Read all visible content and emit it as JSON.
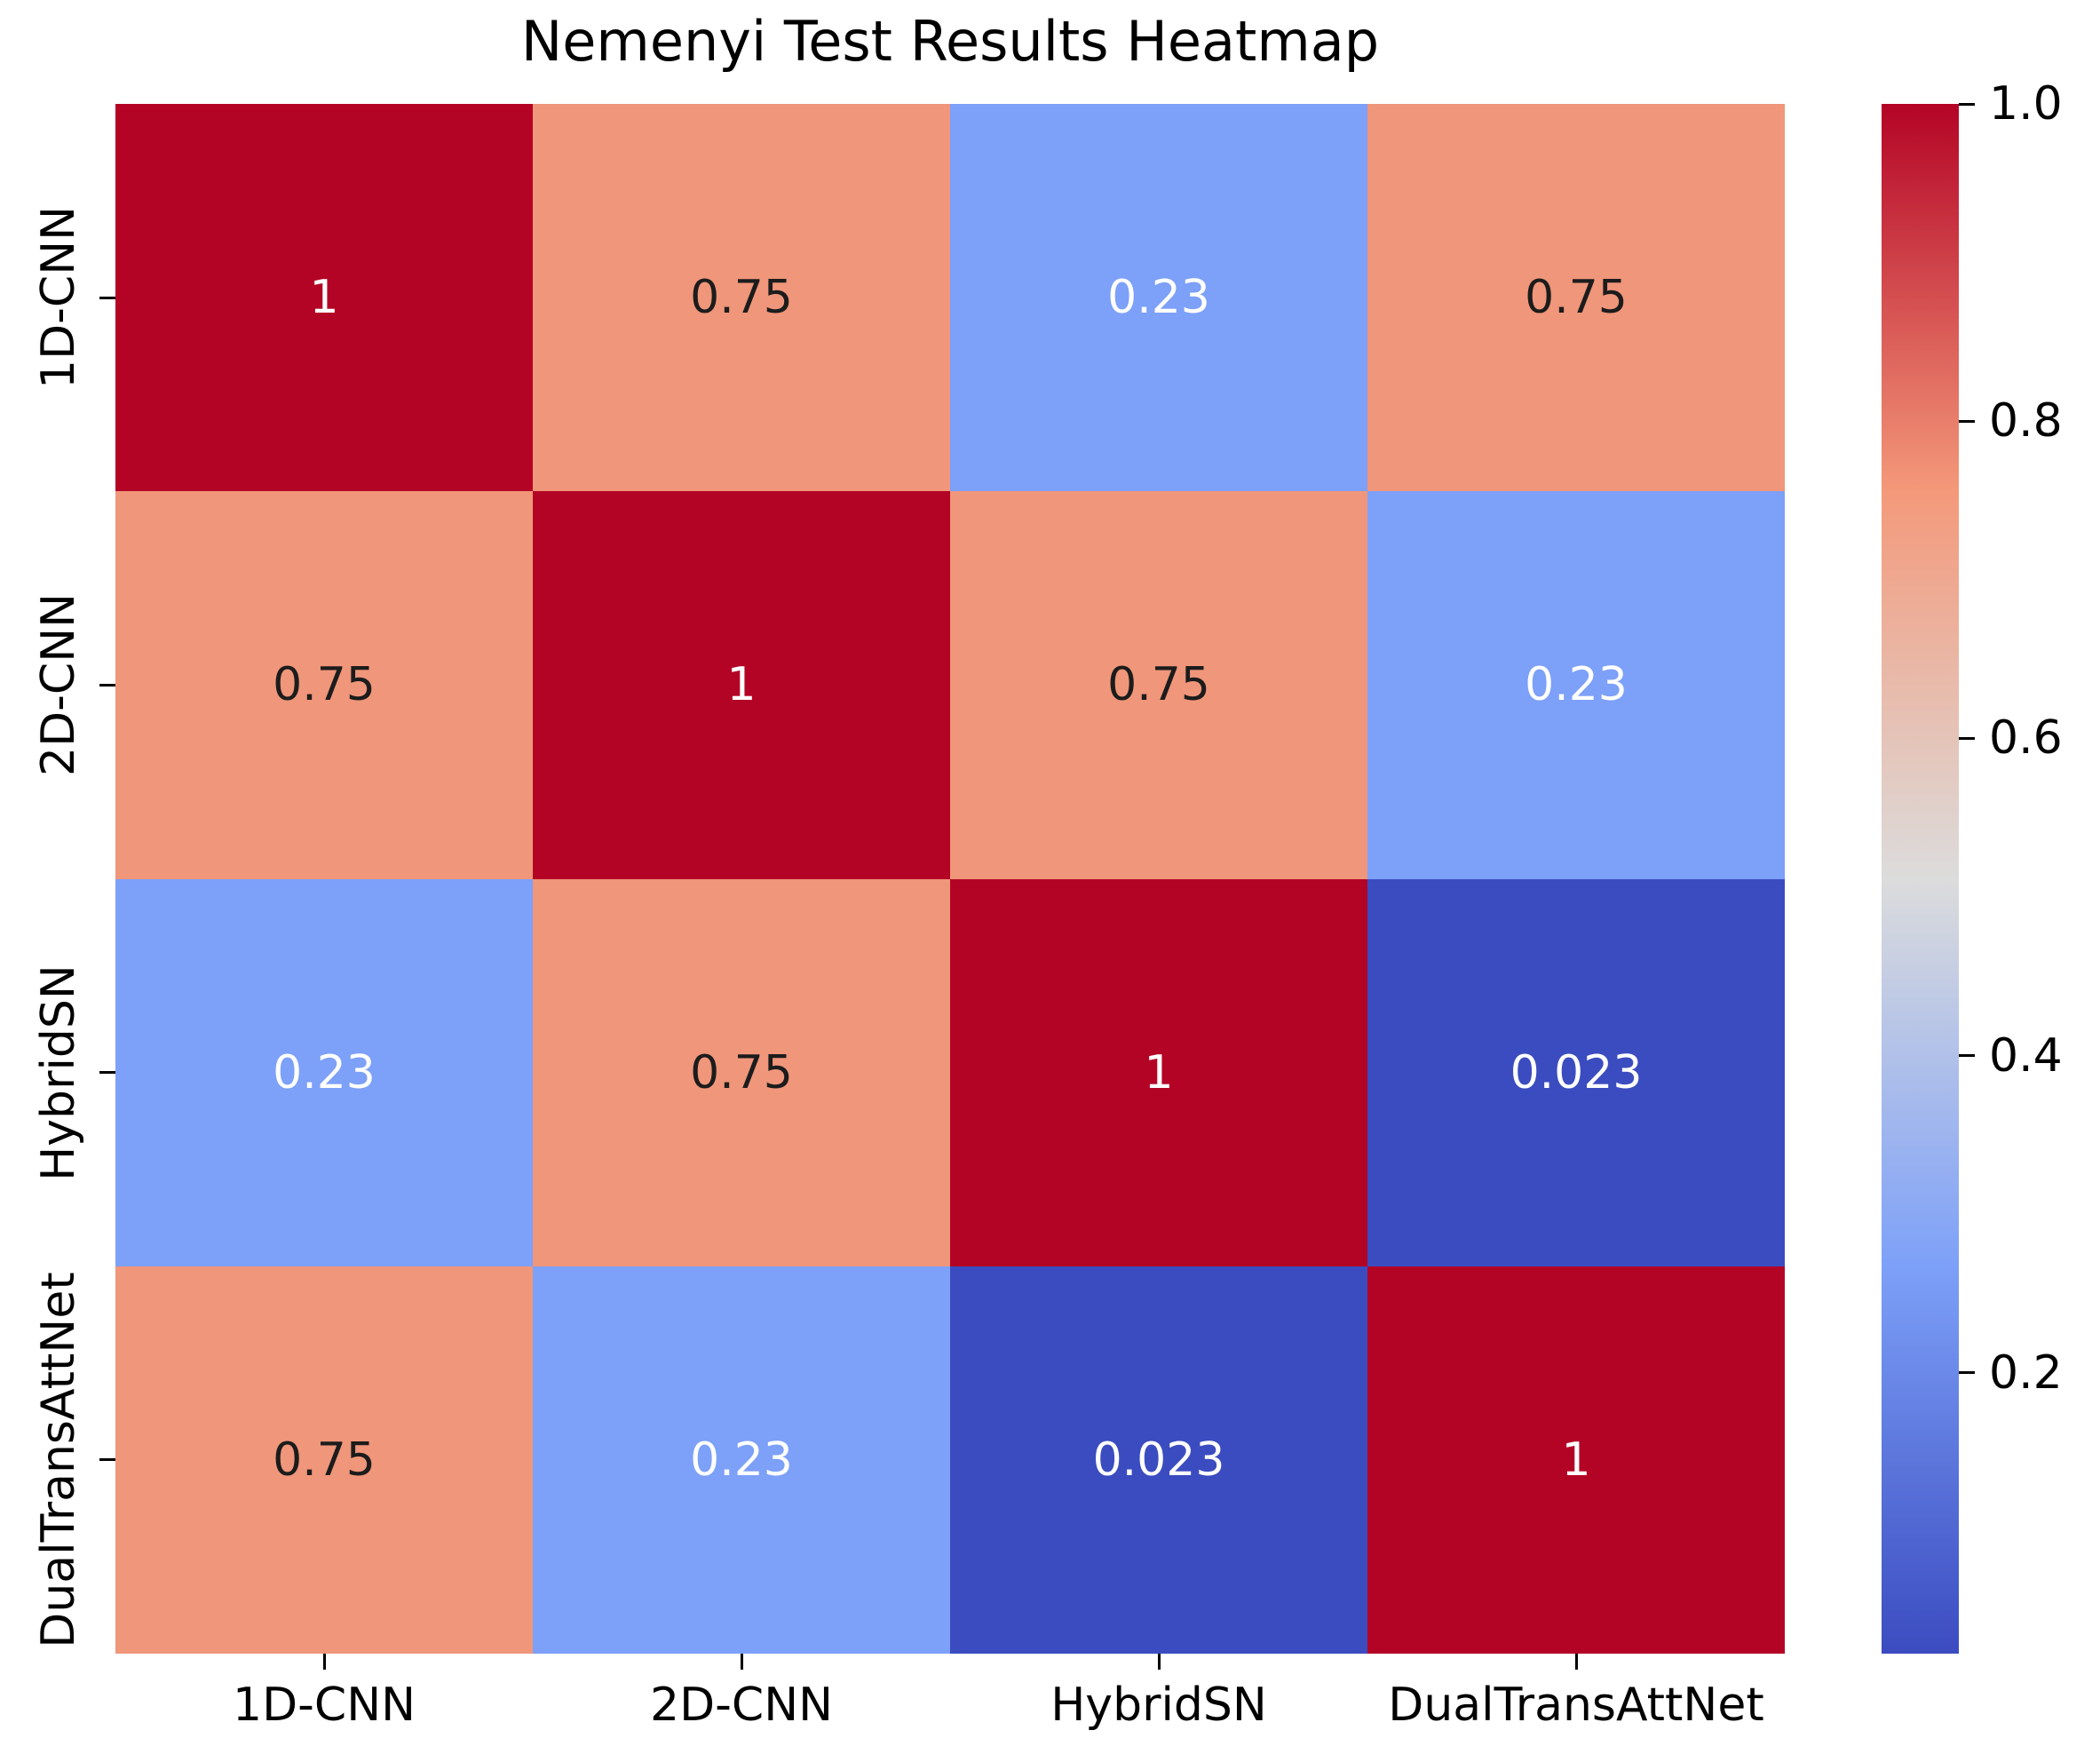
{
  "title": "Nemenyi Test Results Heatmap",
  "chart_data": {
    "type": "heatmap",
    "title": "Nemenyi Test Results Heatmap",
    "categories": [
      "1D-CNN",
      "2D-CNN",
      "HybridSN",
      "DualTransAttNet"
    ],
    "x_tick_labels": [
      "1D-CNN",
      "2D-CNN",
      "HybridSN",
      "DualTransAttNet"
    ],
    "y_tick_labels": [
      "1D-CNN",
      "2D-CNN",
      "HybridSN",
      "DualTransAttNet"
    ],
    "matrix": [
      [
        1,
        0.75,
        0.23,
        0.75
      ],
      [
        0.75,
        1,
        0.75,
        0.23
      ],
      [
        0.23,
        0.75,
        1,
        0.023
      ],
      [
        0.75,
        0.23,
        0.023,
        1
      ]
    ],
    "annotations": [
      [
        "1",
        "0.75",
        "0.23",
        "0.75"
      ],
      [
        "0.75",
        "1",
        "0.75",
        "0.23"
      ],
      [
        "0.23",
        "0.75",
        "1",
        "0.023"
      ],
      [
        "0.75",
        "0.23",
        "0.023",
        "1"
      ]
    ],
    "colormap": "coolwarm",
    "vmin": 0.023,
    "vmax": 1.0,
    "grid": false,
    "colorbar": {
      "position": "right",
      "tick_labels": [
        "1.0",
        "0.8",
        "0.6",
        "0.4",
        "0.2"
      ],
      "tick_values": [
        1.0,
        0.8,
        0.6,
        0.4,
        0.2
      ]
    }
  },
  "colors": {
    "background": "#ffffff",
    "text": "#000000",
    "value_colors": {
      "1": "#b40426",
      "0.75": "#f0967a",
      "0.23": "#7da0f8",
      "0.023": "#3b4cc0"
    },
    "annot_text_colors": {
      "1": "#ffffff",
      "0.75": "#1c1c1c",
      "0.23": "#ffffff",
      "0.023": "#ffffff"
    },
    "colorbar_gradient": [
      {
        "t": 0.0,
        "color": "#3b4cc0"
      },
      {
        "t": 0.25,
        "color": "#7da0f8"
      },
      {
        "t": 0.5,
        "color": "#dcdcdc"
      },
      {
        "t": 0.75,
        "color": "#f4997a"
      },
      {
        "t": 1.0,
        "color": "#b40426"
      }
    ]
  }
}
